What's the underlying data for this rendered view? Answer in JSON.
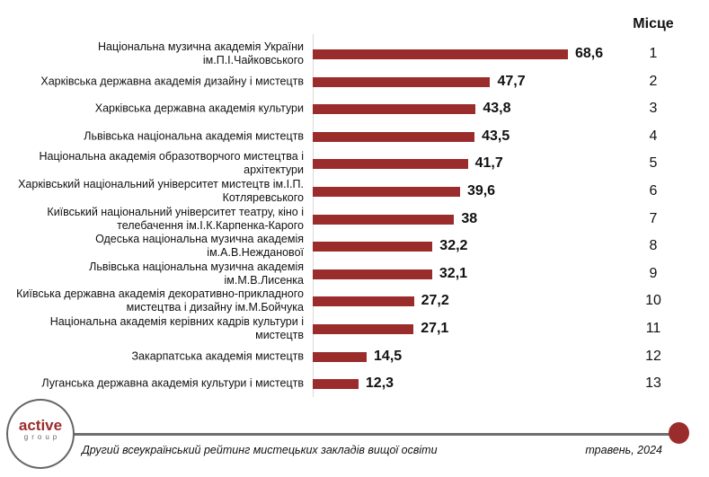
{
  "chart_data": {
    "type": "bar",
    "orientation": "horizontal",
    "rank_header": "Місце",
    "categories": [
      "Національна музична академія України ім.П.І.Чайковського",
      "Харківська державна академія дизайну і мистецтв",
      "Харківська державна академія культури",
      "Львівська національна академія мистецтв",
      "Національна академія образотворчого мистецтва і архітектури",
      "Харківський національний університет мистецтв ім.І.П. Котляревського",
      "Київський національний університет театру, кіно і телебачення ім.І.К.Карпенка-Карого",
      "Одеська національна музична академія ім.А.В.Нежданової",
      "Львівська національна музична академія ім.М.В.Лисенка",
      "Київська державна академія декоративно-прикладного мистецтва і дизайну ім.М.Бойчука",
      "Національна академія керівних кадрів культури і мистецтв",
      "Закарпатська академія мистецтв",
      "Луганська державна академія культури і мистецтв"
    ],
    "values": [
      68.6,
      47.7,
      43.8,
      43.5,
      41.7,
      39.6,
      38,
      32.2,
      32.1,
      27.2,
      27.1,
      14.5,
      12.3
    ],
    "value_labels": [
      "68,6",
      "47,7",
      "43,8",
      "43,5",
      "41,7",
      "39,6",
      "38",
      "32,2",
      "32,1",
      "27,2",
      "27,1",
      "14,5",
      "12,3"
    ],
    "ranks": [
      "1",
      "2",
      "3",
      "4",
      "5",
      "6",
      "7",
      "8",
      "9",
      "10",
      "11",
      "12",
      "13"
    ],
    "bar_color": "#9b2c2c",
    "xlim": [
      0,
      75
    ]
  },
  "footer": {
    "logo_main": "active",
    "logo_sub": "group",
    "title": "Другий всеукраїнський рейтинг мистецьких закладів вищої освіти",
    "date": "травень, 2024"
  }
}
